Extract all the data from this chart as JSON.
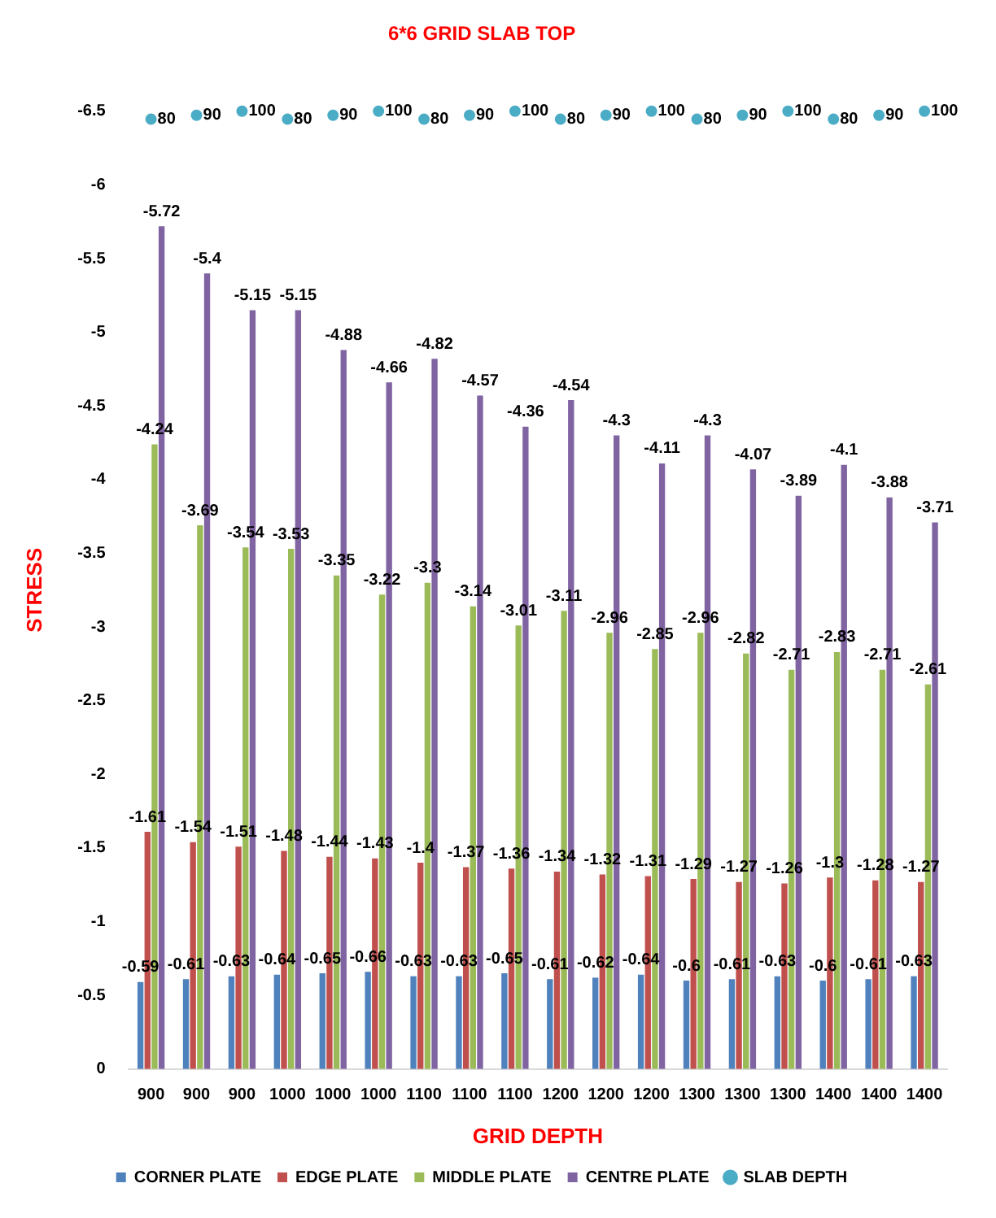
{
  "chart_data": {
    "type": "bar",
    "title": "6*6 GRID SLAB TOP",
    "xlabel": "GRID DEPTH",
    "ylabel": "STRESS",
    "categories": [
      "900",
      "900",
      "900",
      "1000",
      "1000",
      "1000",
      "1100",
      "1100",
      "1100",
      "1200",
      "1200",
      "1200",
      "1300",
      "1300",
      "1300",
      "1400",
      "1400",
      "1400"
    ],
    "series": [
      {
        "name": "CORNER PLATE",
        "color": "#4f81bd",
        "values": [
          -0.59,
          -0.61,
          -0.63,
          -0.64,
          -0.65,
          -0.66,
          -0.63,
          -0.63,
          -0.65,
          -0.61,
          -0.62,
          -0.64,
          -0.6,
          -0.61,
          -0.63,
          -0.6,
          -0.61,
          -0.63
        ]
      },
      {
        "name": "EDGE PLATE",
        "color": "#c0504d",
        "values": [
          -1.61,
          -1.54,
          -1.51,
          -1.48,
          -1.44,
          -1.43,
          -1.4,
          -1.37,
          -1.36,
          -1.34,
          -1.32,
          -1.31,
          -1.29,
          -1.27,
          -1.26,
          -1.3,
          -1.28,
          -1.27
        ]
      },
      {
        "name": "MIDDLE PLATE",
        "color": "#9bbb59",
        "values": [
          -4.24,
          -3.69,
          -3.54,
          -3.53,
          -3.35,
          -3.22,
          -3.3,
          -3.14,
          -3.01,
          -3.11,
          -2.96,
          -2.85,
          -2.96,
          -2.82,
          -2.71,
          -2.83,
          -2.71,
          -2.61
        ]
      },
      {
        "name": "CENTRE PLATE",
        "color": "#8064a2",
        "values": [
          -5.72,
          -5.4,
          -5.15,
          -5.15,
          -4.88,
          -4.66,
          -4.82,
          -4.57,
          -4.36,
          -4.54,
          -4.3,
          -4.11,
          -4.3,
          -4.07,
          -3.89,
          -4.1,
          -3.88,
          -3.71
        ]
      },
      {
        "name": "SLAB DEPTH",
        "type": "scatter",
        "axis": "y2",
        "color": "#4bacc6",
        "values": [
          80,
          90,
          100,
          80,
          90,
          100,
          80,
          90,
          100,
          80,
          90,
          100,
          80,
          90,
          100,
          80,
          90,
          100
        ]
      }
    ],
    "ylim": [
      0,
      -6.5
    ],
    "yticks": [
      0,
      -0.5,
      -1,
      -1.5,
      -2,
      -2.5,
      -3,
      -3.5,
      -4,
      -4.5,
      -5,
      -5.5,
      -6,
      -6.5
    ],
    "data_labels": true,
    "grid": false,
    "legend": "bottom",
    "marker": "circle"
  }
}
